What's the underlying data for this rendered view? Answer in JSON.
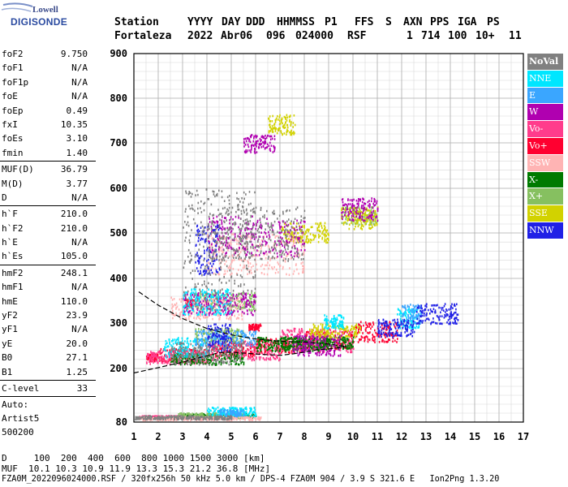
{
  "logo": {
    "line1": "Lowell",
    "line2": "DIGISONDE"
  },
  "header": {
    "labels": [
      "Station",
      "YYYY",
      "DAY",
      "DDD",
      "HHMMSS",
      "P1",
      "FFS",
      "S",
      "AXN",
      "PPS",
      "IGA",
      "PS"
    ],
    "values": [
      "Fortaleza",
      "2022",
      "Abr06",
      "096",
      "024000",
      "RSF",
      "",
      "1",
      "714",
      "100",
      "10+",
      "11"
    ]
  },
  "params": [
    {
      "group": [
        [
          "foF2",
          "9.750"
        ],
        [
          "foF1",
          "N/A"
        ],
        [
          "foF1p",
          "N/A"
        ],
        [
          "foE",
          "N/A"
        ],
        [
          "foEp",
          "0.49"
        ],
        [
          "fxI",
          "10.35"
        ],
        [
          "foEs",
          "3.10"
        ],
        [
          "fmin",
          "1.40"
        ]
      ]
    },
    {
      "group": [
        [
          "MUF(D)",
          "36.79"
        ],
        [
          "M(D)",
          "3.77"
        ],
        [
          "D",
          "N/A"
        ]
      ]
    },
    {
      "group": [
        [
          "h`F",
          "210.0"
        ],
        [
          "h`F2",
          "210.0"
        ],
        [
          "h`E",
          "N/A"
        ],
        [
          "h`Es",
          "105.0"
        ]
      ]
    },
    {
      "group": [
        [
          "hmF2",
          "248.1"
        ],
        [
          "hmF1",
          "N/A"
        ],
        [
          "hmE",
          "110.0"
        ],
        [
          "yF2",
          "23.9"
        ],
        [
          "yF1",
          "N/A"
        ],
        [
          "yE",
          "20.0"
        ],
        [
          "B0",
          "27.1"
        ],
        [
          "B1",
          "1.25"
        ]
      ]
    },
    {
      "group": [
        [
          "C-level",
          "33"
        ]
      ]
    }
  ],
  "auto": {
    "line1": "Auto:",
    "line2": "Artist5",
    "line3": "500200"
  },
  "legend": [
    {
      "label": "NoVal",
      "color": "#808080"
    },
    {
      "label": "NNE",
      "color": "#00e6ff"
    },
    {
      "label": "E",
      "color": "#3aa6ff"
    },
    {
      "label": "W",
      "color": "#b000b0"
    },
    {
      "label": "Vo-",
      "color": "#ff3c8c"
    },
    {
      "label": "Vo+",
      "color": "#ff0030"
    },
    {
      "label": "SSW",
      "color": "#ffb4b4"
    },
    {
      "label": "X-",
      "color": "#007a00"
    },
    {
      "label": "X+",
      "color": "#86c060"
    },
    {
      "label": "SSE",
      "color": "#d2d200"
    },
    {
      "label": "NNW",
      "color": "#2020e6"
    }
  ],
  "footer": {
    "line1": "D     100  200  400  600  800 1000 1500 3000 [km]",
    "line2": "MUF  10.1 10.3 10.9 11.9 13.3 15.3 21.2 36.8 [MHz]",
    "line3": "FZA0M_2022096024000.RSF / 320fx256h 50 kHz 5.0 km / DPS-4 FZA0M 904 / 3.9 S 321.6 E   Ion2Png 1.3.20"
  },
  "chart_data": {
    "type": "scatter",
    "title": "",
    "xlabel": "",
    "ylabel": "",
    "xlim": [
      1,
      17
    ],
    "ylim": [
      80,
      900
    ],
    "x_ticks": [
      1,
      2,
      3,
      4,
      5,
      6,
      7,
      8,
      9,
      10,
      11,
      12,
      13,
      14,
      15,
      16,
      17
    ],
    "y_ticks": [
      80,
      200,
      300,
      400,
      500,
      600,
      700,
      800,
      900
    ],
    "grid": true,
    "legend_position": "right",
    "series": [
      {
        "name": "Vo+",
        "color": "#ff0030",
        "segments": [
          [
            1.5,
            2.0,
            218,
            235
          ],
          [
            2.0,
            4.0,
            215,
            245
          ],
          [
            4.0,
            6.0,
            228,
            258
          ],
          [
            6.0,
            8.0,
            236,
            270
          ],
          [
            8.0,
            10.0,
            245,
            285
          ],
          [
            10.0,
            11.8,
            260,
            305
          ],
          [
            3.1,
            3.5,
            340,
            355
          ],
          [
            5.7,
            6.2,
            285,
            300
          ]
        ]
      },
      {
        "name": "Vo-",
        "color": "#ff3c8c",
        "segments": [
          [
            1.5,
            4.0,
            212,
            240
          ],
          [
            4.0,
            7.0,
            220,
            262
          ],
          [
            7.0,
            10.0,
            238,
            290
          ],
          [
            1.2,
            3.5,
            90,
            96
          ]
        ]
      },
      {
        "name": "X-",
        "color": "#007a00",
        "segments": [
          [
            2.5,
            5.5,
            210,
            235
          ],
          [
            7.0,
            10.0,
            245,
            272
          ],
          [
            3.0,
            6.0,
            92,
            100
          ],
          [
            6.0,
            9.0,
            240,
            270
          ]
        ]
      },
      {
        "name": "X+",
        "color": "#86c060",
        "segments": [
          [
            3.5,
            5.5,
            260,
            290
          ],
          [
            2.8,
            5.5,
            90,
            102
          ],
          [
            3.5,
            6.0,
            330,
            370
          ],
          [
            9.5,
            11.0,
            520,
            560
          ]
        ]
      },
      {
        "name": "SSE",
        "color": "#d2d200",
        "segments": [
          [
            8.2,
            10.3,
            270,
            300
          ],
          [
            6.5,
            7.6,
            720,
            765
          ],
          [
            7.0,
            9.0,
            480,
            525
          ],
          [
            9.5,
            11.0,
            510,
            560
          ]
        ]
      },
      {
        "name": "SSW",
        "color": "#ffb4b4",
        "segments": [
          [
            1.2,
            6.2,
            86,
            94
          ],
          [
            4.0,
            8.0,
            410,
            500
          ],
          [
            2.5,
            5.5,
            310,
            360
          ]
        ]
      },
      {
        "name": "W",
        "color": "#b000b0",
        "segments": [
          [
            3.0,
            6.0,
            320,
            370
          ],
          [
            4.0,
            8.0,
            450,
            540
          ],
          [
            5.5,
            6.8,
            680,
            720
          ],
          [
            9.5,
            11.0,
            530,
            580
          ],
          [
            7.5,
            9.5,
            230,
            275
          ]
        ]
      },
      {
        "name": "NNE",
        "color": "#00e6ff",
        "segments": [
          [
            2.2,
            4.0,
            225,
            270
          ],
          [
            3.0,
            5.0,
            320,
            380
          ],
          [
            11.8,
            12.7,
            290,
            335
          ],
          [
            4.0,
            6.0,
            95,
            115
          ],
          [
            8.8,
            9.6,
            290,
            320
          ]
        ]
      },
      {
        "name": "E",
        "color": "#3aa6ff",
        "segments": [
          [
            3.5,
            6.0,
            250,
            285
          ],
          [
            12.0,
            12.8,
            300,
            345
          ],
          [
            4.5,
            5.5,
            95,
            110
          ]
        ]
      },
      {
        "name": "NNW",
        "color": "#2020e6",
        "segments": [
          [
            12.6,
            14.3,
            300,
            345
          ],
          [
            4.0,
            5.0,
            240,
            300
          ],
          [
            11.0,
            12.5,
            270,
            310
          ],
          [
            3.5,
            4.5,
            410,
            520
          ]
        ]
      },
      {
        "name": "NoVal",
        "color": "#808080",
        "segments": [
          [
            3.0,
            6.0,
            330,
            600
          ],
          [
            4.0,
            8.0,
            440,
            560
          ],
          [
            2.5,
            5.5,
            210,
            260
          ],
          [
            1.0,
            5.0,
            88,
            96
          ]
        ]
      }
    ],
    "profile_curve": {
      "color": "#000000",
      "x": [
        1.0,
        1.5,
        2.0,
        2.5,
        3.0,
        3.5,
        4.0,
        4.5,
        5.0,
        6.0,
        7.0,
        7.5,
        8.0,
        8.5,
        9.0,
        9.3,
        9.6,
        9.75
      ],
      "y": [
        190,
        196,
        202,
        208,
        214,
        221,
        228,
        235,
        236,
        232,
        229,
        232,
        236,
        241,
        243,
        245,
        247,
        248
      ]
    },
    "extrapolation_curve": {
      "color": "#000000",
      "x": [
        1.2,
        2.0,
        3.0,
        4.0,
        5.0,
        6.0,
        7.0,
        7.5,
        8.0,
        8.5,
        9.0,
        9.5,
        9.75
      ],
      "y": [
        370,
        340,
        310,
        288,
        274,
        265,
        260,
        259,
        258,
        256,
        254,
        250,
        248
      ]
    }
  }
}
